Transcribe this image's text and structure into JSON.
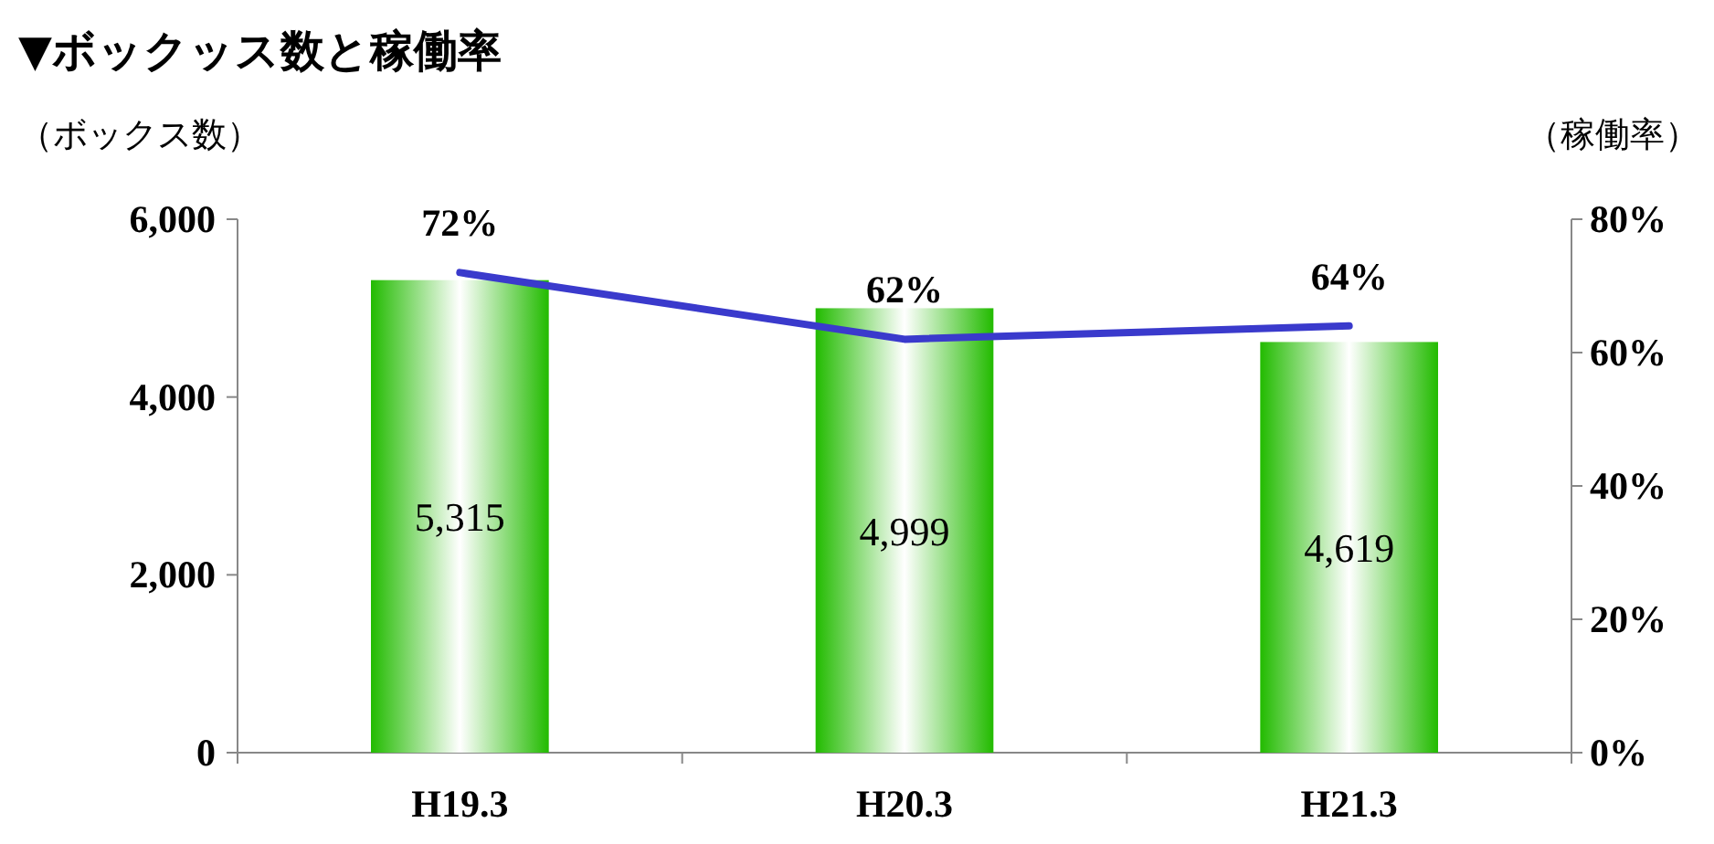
{
  "chart_data": {
    "type": "bar",
    "title": "▼ボックッス数と稼働率",
    "ylabel": "（ボックス数）",
    "y2label": "（稼働率）",
    "categories": [
      "H19.3",
      "H20.3",
      "H21.3"
    ],
    "series": [
      {
        "color": "#22bb00",
        "values": [
          5315,
          4999,
          4619
        ],
        "value_labels": [
          "5,315",
          "4,999",
          "4,619"
        ]
      },
      {
        "type": "line",
        "axis": "y2",
        "color": "#3a3acc",
        "values": [
          72,
          62,
          64
        ],
        "value_labels": [
          "72%",
          "62%",
          "64%"
        ]
      }
    ],
    "ylim": [
      0,
      6000
    ],
    "yticks": [
      0,
      {
        "value": 2000,
        "label": "2,000"
      },
      {
        "value": 4000,
        "label": "4,000"
      },
      {
        "value": 6000,
        "label": "6,000"
      }
    ],
    "y2lim": [
      0,
      80
    ],
    "y2ticks": [
      {
        "value": 0,
        "label": "0%"
      },
      {
        "value": 20,
        "label": "20%"
      },
      {
        "value": 40,
        "label": "40%"
      },
      {
        "value": 60,
        "label": "60%"
      },
      {
        "value": 80,
        "label": "80%"
      }
    ],
    "grid": false
  }
}
